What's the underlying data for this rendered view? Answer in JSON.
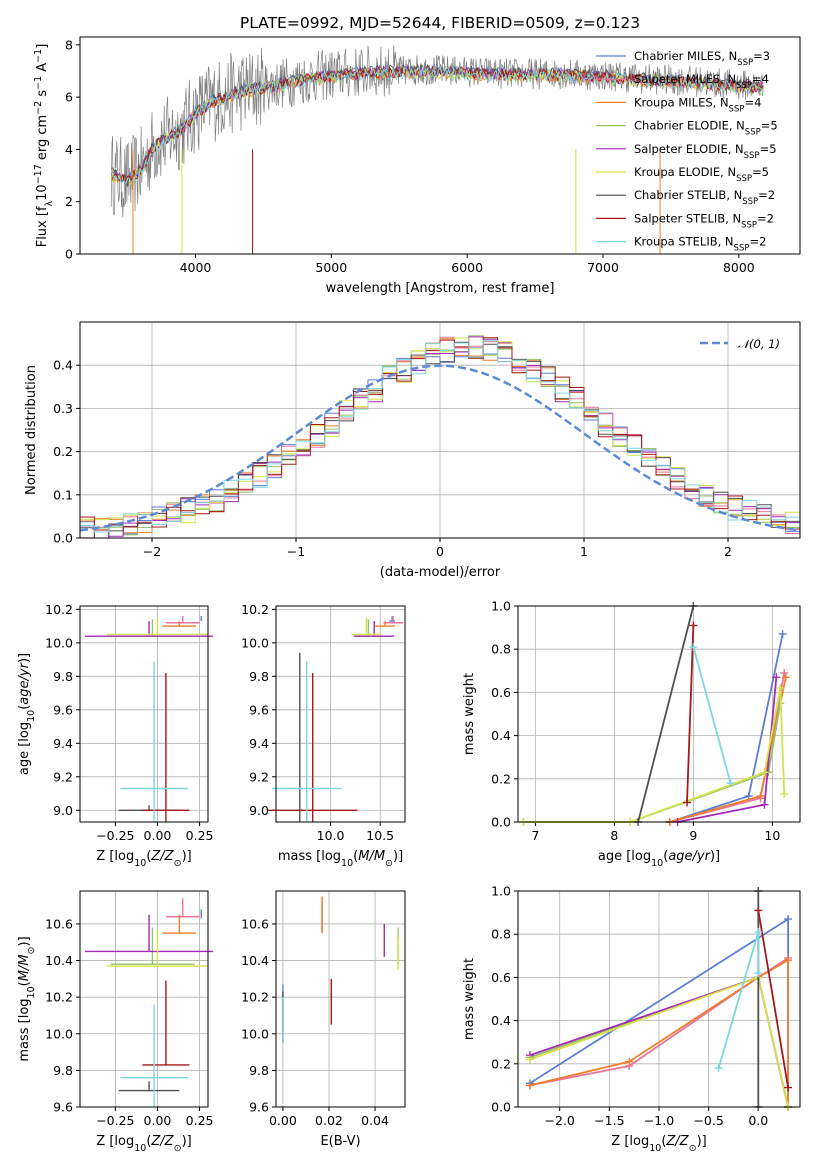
{
  "chart_data": [
    {
      "id": "spectrum",
      "type": "line",
      "title": "PLATE=0992, MJD=52644, FIBERID=0509, z=0.123",
      "xlabel": "wavelength [Angstrom, rest frame]",
      "ylabel": "Flux [f_λ 10^-17 erg cm^-2 s^-1 A^-1]",
      "xlim": [
        3150,
        8450
      ],
      "ylim": [
        0,
        8.3
      ],
      "xticks": [
        4000,
        5000,
        6000,
        7000,
        8000
      ],
      "yticks": [
        0,
        2,
        4,
        6,
        8
      ],
      "legend_position": "top-right",
      "continuum": {
        "x": [
          3380,
          3500,
          3600,
          3700,
          3800,
          3900,
          4000,
          4100,
          4200,
          4300,
          4500,
          4700,
          4900,
          5100,
          5300,
          5500,
          5700,
          5900,
          6100,
          6300,
          6500,
          6700,
          6900,
          7100,
          7300,
          7500,
          7700,
          7900,
          8100,
          8180
        ],
        "y": [
          3.1,
          2.8,
          3.3,
          4.2,
          4.5,
          4.8,
          5.4,
          5.8,
          6.0,
          6.2,
          6.4,
          6.6,
          6.8,
          6.9,
          7.0,
          7.0,
          7.05,
          7.0,
          6.95,
          6.9,
          6.9,
          6.9,
          6.85,
          6.8,
          6.7,
          6.65,
          6.6,
          6.5,
          6.45,
          6.4
        ]
      },
      "series": [
        {
          "name": "Chabrier MILES, N_SSP=3",
          "color": "#5b7fd6"
        },
        {
          "name": "Salpeter MILES, N_SSP=4",
          "color": "#e8749c"
        },
        {
          "name": "Kroupa MILES, N_SSP=4",
          "color": "#ee7f2d"
        },
        {
          "name": "Chabrier ELODIE, N_SSP=5",
          "color": "#98c06a"
        },
        {
          "name": "Salpeter ELODIE, N_SSP=5",
          "color": "#a32bb8"
        },
        {
          "name": "Kroupa ELODIE, N_SSP=5",
          "color": "#d6e24a"
        },
        {
          "name": "Chabrier STELIB, N_SSP=2",
          "color": "#505050"
        },
        {
          "name": "Salpeter STELIB, N_SSP=2",
          "color": "#a81818"
        },
        {
          "name": "Kroupa STELIB, N_SSP=2",
          "color": "#7dd6e0"
        }
      ]
    },
    {
      "id": "residuals",
      "type": "histogram",
      "xlabel": "(data-model)/error",
      "ylabel": "Normed distribution",
      "xlim": [
        -2.5,
        2.5
      ],
      "ylim": [
        0,
        0.5
      ],
      "xticks": [
        -2,
        -1,
        0,
        1,
        2
      ],
      "yticks": [
        0.0,
        0.1,
        0.2,
        0.3,
        0.4
      ],
      "grid": true,
      "legend_position": "top-right",
      "reference_curve": {
        "name": "𝒩(0, 1)",
        "color": "#5b8ad6",
        "mean": 0,
        "sd": 1
      },
      "bin_edges_start": -2.5,
      "bin_width": 0.1,
      "envelope": [
        0.02,
        0.025,
        0.03,
        0.035,
        0.04,
        0.045,
        0.055,
        0.065,
        0.075,
        0.09,
        0.105,
        0.125,
        0.145,
        0.165,
        0.19,
        0.21,
        0.235,
        0.26,
        0.29,
        0.32,
        0.345,
        0.37,
        0.39,
        0.41,
        0.425,
        0.435,
        0.44,
        0.44,
        0.435,
        0.425,
        0.41,
        0.39,
        0.37,
        0.345,
        0.32,
        0.29,
        0.26,
        0.235,
        0.21,
        0.185,
        0.16,
        0.14,
        0.12,
        0.1,
        0.085,
        0.07,
        0.06,
        0.05,
        0.04,
        0.03
      ]
    },
    {
      "id": "age_vs_Z",
      "type": "errorbar",
      "xlabel": "Z [log10(Z/Z⊙)]",
      "ylabel": "age [log10(age/yr)]",
      "xlim": [
        -0.46,
        0.3
      ],
      "ylim": [
        8.93,
        10.22
      ],
      "xticks": [
        -0.25,
        0.0,
        0.25
      ],
      "yticks": [
        9.0,
        9.2,
        9.4,
        9.6,
        9.8,
        10.0,
        10.2
      ],
      "points": [
        {
          "x": 0.26,
          "y": 10.13,
          "xerr": 0.0,
          "yerr": 0.03,
          "color": "#5b7fd6"
        },
        {
          "x": 0.15,
          "y": 10.12,
          "xerr": 0.1,
          "yerr": 0.04,
          "color": "#e8749c"
        },
        {
          "x": 0.13,
          "y": 10.1,
          "xerr": 0.1,
          "yerr": 0.03,
          "color": "#ee7f2d"
        },
        {
          "x": -0.03,
          "y": 10.04,
          "xerr": 0.25,
          "yerr": 0.1,
          "color": "#98c06a"
        },
        {
          "x": -0.05,
          "y": 10.04,
          "xerr": 0.38,
          "yerr": 0.09,
          "color": "#a32bb8"
        },
        {
          "x": 0.0,
          "y": 10.05,
          "xerr": 0.3,
          "yerr": 0.1,
          "color": "#d6e24a"
        },
        {
          "x": -0.05,
          "y": 9.0,
          "xerr": 0.18,
          "yerr": 0.03,
          "color": "#505050"
        },
        {
          "x": 0.05,
          "y": 9.0,
          "xerr": 0.14,
          "yerr": 0.82,
          "color": "#a81818"
        },
        {
          "x": -0.02,
          "y": 9.13,
          "xerr": 0.2,
          "yerr": 0.76,
          "color": "#7dd6e0"
        }
      ]
    },
    {
      "id": "age_vs_mass",
      "type": "errorbar",
      "xlabel": "mass [log10(M/M⊙)]",
      "ylabel": "",
      "xlim": [
        9.45,
        10.75
      ],
      "ylim": [
        8.93,
        10.22
      ],
      "xticks": [
        10.0,
        10.5
      ],
      "yticks": [
        9.0,
        9.2,
        9.4,
        9.6,
        9.8,
        10.0,
        10.2
      ],
      "points": [
        {
          "x": 10.62,
          "y": 10.13,
          "xerr": 0.03,
          "yerr": 0.03,
          "color": "#5b7fd6"
        },
        {
          "x": 10.63,
          "y": 10.12,
          "xerr": 0.1,
          "yerr": 0.04,
          "color": "#e8749c"
        },
        {
          "x": 10.55,
          "y": 10.1,
          "xerr": 0.1,
          "yerr": 0.03,
          "color": "#ee7f2d"
        },
        {
          "x": 10.38,
          "y": 10.04,
          "xerr": 0.15,
          "yerr": 0.1,
          "color": "#98c06a"
        },
        {
          "x": 10.44,
          "y": 10.04,
          "xerr": 0.2,
          "yerr": 0.09,
          "color": "#a32bb8"
        },
        {
          "x": 10.36,
          "y": 10.05,
          "xerr": 0.15,
          "yerr": 0.1,
          "color": "#d6e24a"
        },
        {
          "x": 9.69,
          "y": 9.0,
          "xerr": 0.03,
          "yerr": 0.94,
          "color": "#505050"
        },
        {
          "x": 9.82,
          "y": 9.0,
          "xerr": 0.45,
          "yerr": 0.82,
          "color": "#a81818"
        },
        {
          "x": 9.76,
          "y": 9.13,
          "xerr": 0.35,
          "yerr": 0.76,
          "color": "#7dd6e0"
        }
      ]
    },
    {
      "id": "weight_vs_age",
      "type": "line",
      "xlabel": "age [log10(age/yr)]",
      "ylabel": "mass weight",
      "xlim": [
        6.78,
        10.35
      ],
      "ylim": [
        0,
        1.0
      ],
      "xticks": [
        7,
        8,
        9,
        10
      ],
      "yticks": [
        0.0,
        0.2,
        0.4,
        0.6,
        0.8,
        1.0
      ],
      "grid": true,
      "series": [
        {
          "color": "#5b7fd6",
          "x": [
            8.7,
            9.7,
            10.13
          ],
          "y": [
            0.0,
            0.12,
            0.87
          ]
        },
        {
          "color": "#e8749c",
          "x": [
            8.7,
            9.85,
            10.15
          ],
          "y": [
            0.0,
            0.11,
            0.69
          ]
        },
        {
          "color": "#ee7f2d",
          "x": [
            8.7,
            9.85,
            10.17
          ],
          "y": [
            0.0,
            0.12,
            0.67
          ]
        },
        {
          "color": "#98c06a",
          "x": [
            6.85,
            8.2,
            9.95,
            10.1
          ],
          "y": [
            0.0,
            0.0,
            0.23,
            0.55
          ]
        },
        {
          "color": "#a32bb8",
          "x": [
            8.8,
            9.9,
            10.05
          ],
          "y": [
            0.0,
            0.08,
            0.67
          ]
        },
        {
          "color": "#d6e24a",
          "x": [
            6.85,
            8.2,
            9.9,
            10.1,
            10.15
          ],
          "y": [
            0.0,
            0.0,
            0.23,
            0.62,
            0.13
          ]
        },
        {
          "color": "#505050",
          "x": [
            8.3,
            9.0
          ],
          "y": [
            0.0,
            1.0
          ]
        },
        {
          "color": "#a81818",
          "x": [
            8.92,
            9.0
          ],
          "y": [
            0.09,
            0.91
          ]
        },
        {
          "color": "#7dd6e0",
          "x": [
            9.0,
            9.47
          ],
          "y": [
            0.81,
            0.18
          ]
        }
      ]
    },
    {
      "id": "mass_vs_Z",
      "type": "errorbar",
      "xlabel": "Z [log10(Z/Z⊙)]",
      "ylabel": "mass [log10(M/M⊙)]",
      "xlim": [
        -0.46,
        0.3
      ],
      "ylim": [
        9.6,
        10.78
      ],
      "xticks": [
        -0.25,
        0.0,
        0.25
      ],
      "yticks": [
        9.6,
        9.8,
        10.0,
        10.2,
        10.4,
        10.6
      ],
      "points": [
        {
          "x": 0.26,
          "y": 10.63,
          "xerr": 0.0,
          "yerr": 0.05,
          "color": "#5b7fd6"
        },
        {
          "x": 0.15,
          "y": 10.64,
          "xerr": 0.1,
          "yerr": 0.1,
          "color": "#e8749c"
        },
        {
          "x": 0.13,
          "y": 10.55,
          "xerr": 0.1,
          "yerr": 0.1,
          "color": "#ee7f2d"
        },
        {
          "x": -0.03,
          "y": 10.38,
          "xerr": 0.25,
          "yerr": 0.2,
          "color": "#98c06a"
        },
        {
          "x": -0.05,
          "y": 10.45,
          "xerr": 0.38,
          "yerr": 0.2,
          "color": "#a32bb8"
        },
        {
          "x": 0.0,
          "y": 10.37,
          "xerr": 0.3,
          "yerr": 0.2,
          "color": "#d6e24a"
        },
        {
          "x": -0.05,
          "y": 9.69,
          "xerr": 0.18,
          "yerr": 0.05,
          "color": "#505050"
        },
        {
          "x": 0.05,
          "y": 9.83,
          "xerr": 0.14,
          "yerr": 0.46,
          "color": "#a81818"
        },
        {
          "x": -0.02,
          "y": 9.76,
          "xerr": 0.2,
          "yerr": 0.4,
          "color": "#7dd6e0"
        }
      ]
    },
    {
      "id": "mass_vs_EBV",
      "type": "errorbar",
      "xlabel": "E(B-V)",
      "ylabel": "",
      "xlim": [
        -0.003,
        0.053
      ],
      "ylim": [
        9.6,
        10.78
      ],
      "xticks": [
        0.0,
        0.02,
        0.04
      ],
      "yticks": [
        9.6,
        9.8,
        10.0,
        10.2,
        10.4,
        10.6
      ],
      "points": [
        {
          "x": 0.0,
          "y": 10.0,
          "xerr": 0.0,
          "yerr": 0.27,
          "color": "#5b7fd6"
        },
        {
          "x": 0.017,
          "y": 10.55,
          "xerr": 0.0,
          "yerr": 0.17,
          "color": "#e8749c"
        },
        {
          "x": 0.017,
          "y": 10.55,
          "xerr": 0.0,
          "yerr": 0.2,
          "color": "#ee7f2d"
        },
        {
          "x": 0.05,
          "y": 10.38,
          "xerr": 0.0,
          "yerr": 0.2,
          "color": "#98c06a"
        },
        {
          "x": 0.044,
          "y": 10.42,
          "xerr": 0.0,
          "yerr": 0.18,
          "color": "#a32bb8"
        },
        {
          "x": 0.05,
          "y": 10.35,
          "xerr": 0.0,
          "yerr": 0.18,
          "color": "#d6e24a"
        },
        {
          "x": 0.0,
          "y": 9.95,
          "xerr": 0.0,
          "yerr": 0.28,
          "color": "#505050"
        },
        {
          "x": 0.021,
          "y": 10.05,
          "xerr": 0.0,
          "yerr": 0.25,
          "color": "#a81818"
        },
        {
          "x": 0.0,
          "y": 9.95,
          "xerr": 0.0,
          "yerr": 0.25,
          "color": "#7dd6e0"
        }
      ]
    },
    {
      "id": "weight_vs_Z",
      "type": "line",
      "xlabel": "Z [log10(Z/Z⊙)]",
      "ylabel": "mass weight",
      "xlim": [
        -2.42,
        0.42
      ],
      "ylim": [
        0,
        1.0
      ],
      "xticks": [
        -2.0,
        -1.5,
        -1.0,
        -0.5,
        0.0
      ],
      "yticks": [
        0.0,
        0.2,
        0.4,
        0.6,
        0.8,
        1.0
      ],
      "grid": true,
      "series": [
        {
          "color": "#5b7fd6",
          "x": [
            -2.3,
            0.3,
            0.3
          ],
          "y": [
            0.11,
            0.87,
            0.0
          ]
        },
        {
          "color": "#e8749c",
          "x": [
            -2.3,
            -1.3,
            0.0,
            0.3,
            0.3
          ],
          "y": [
            0.1,
            0.19,
            0.6,
            0.69,
            0.0
          ]
        },
        {
          "color": "#ee7f2d",
          "x": [
            -2.3,
            -1.3,
            0.0,
            0.3,
            0.3
          ],
          "y": [
            0.1,
            0.21,
            0.6,
            0.68,
            0.0
          ]
        },
        {
          "color": "#98c06a",
          "x": [
            -2.3,
            0.0,
            0.3
          ],
          "y": [
            0.23,
            0.6,
            0.0
          ]
        },
        {
          "color": "#a32bb8",
          "x": [
            -2.3,
            0.0,
            0.3
          ],
          "y": [
            0.24,
            0.6,
            0.0
          ]
        },
        {
          "color": "#d6e24a",
          "x": [
            -2.3,
            0.0,
            0.3
          ],
          "y": [
            0.22,
            0.6,
            0.0
          ]
        },
        {
          "color": "#505050",
          "x": [
            0.0,
            0.0
          ],
          "y": [
            0.0,
            1.0
          ]
        },
        {
          "color": "#a81818",
          "x": [
            0.0,
            0.3
          ],
          "y": [
            0.91,
            0.09
          ]
        },
        {
          "color": "#7dd6e0",
          "x": [
            -0.4,
            0.0,
            0.0
          ],
          "y": [
            0.18,
            0.81,
            0.62
          ]
        }
      ]
    }
  ],
  "legend_labels": [
    {
      "pre": "Chabrier MILES, N",
      "sub": "SSP",
      "post": "=3"
    },
    {
      "pre": "Salpeter MILES, N",
      "sub": "SSP",
      "post": "=4"
    },
    {
      "pre": "Kroupa MILES, N",
      "sub": "SSP",
      "post": "=4"
    },
    {
      "pre": "Chabrier ELODIE, N",
      "sub": "SSP",
      "post": "=5"
    },
    {
      "pre": "Salpeter ELODIE, N",
      "sub": "SSP",
      "post": "=5"
    },
    {
      "pre": "Kroupa ELODIE, N",
      "sub": "SSP",
      "post": "=5"
    },
    {
      "pre": "Chabrier STELIB, N",
      "sub": "SSP",
      "post": "=2"
    },
    {
      "pre": "Salpeter STELIB, N",
      "sub": "SSP",
      "post": "=2"
    },
    {
      "pre": "Kroupa STELIB, N",
      "sub": "SSP",
      "post": "=2"
    }
  ]
}
